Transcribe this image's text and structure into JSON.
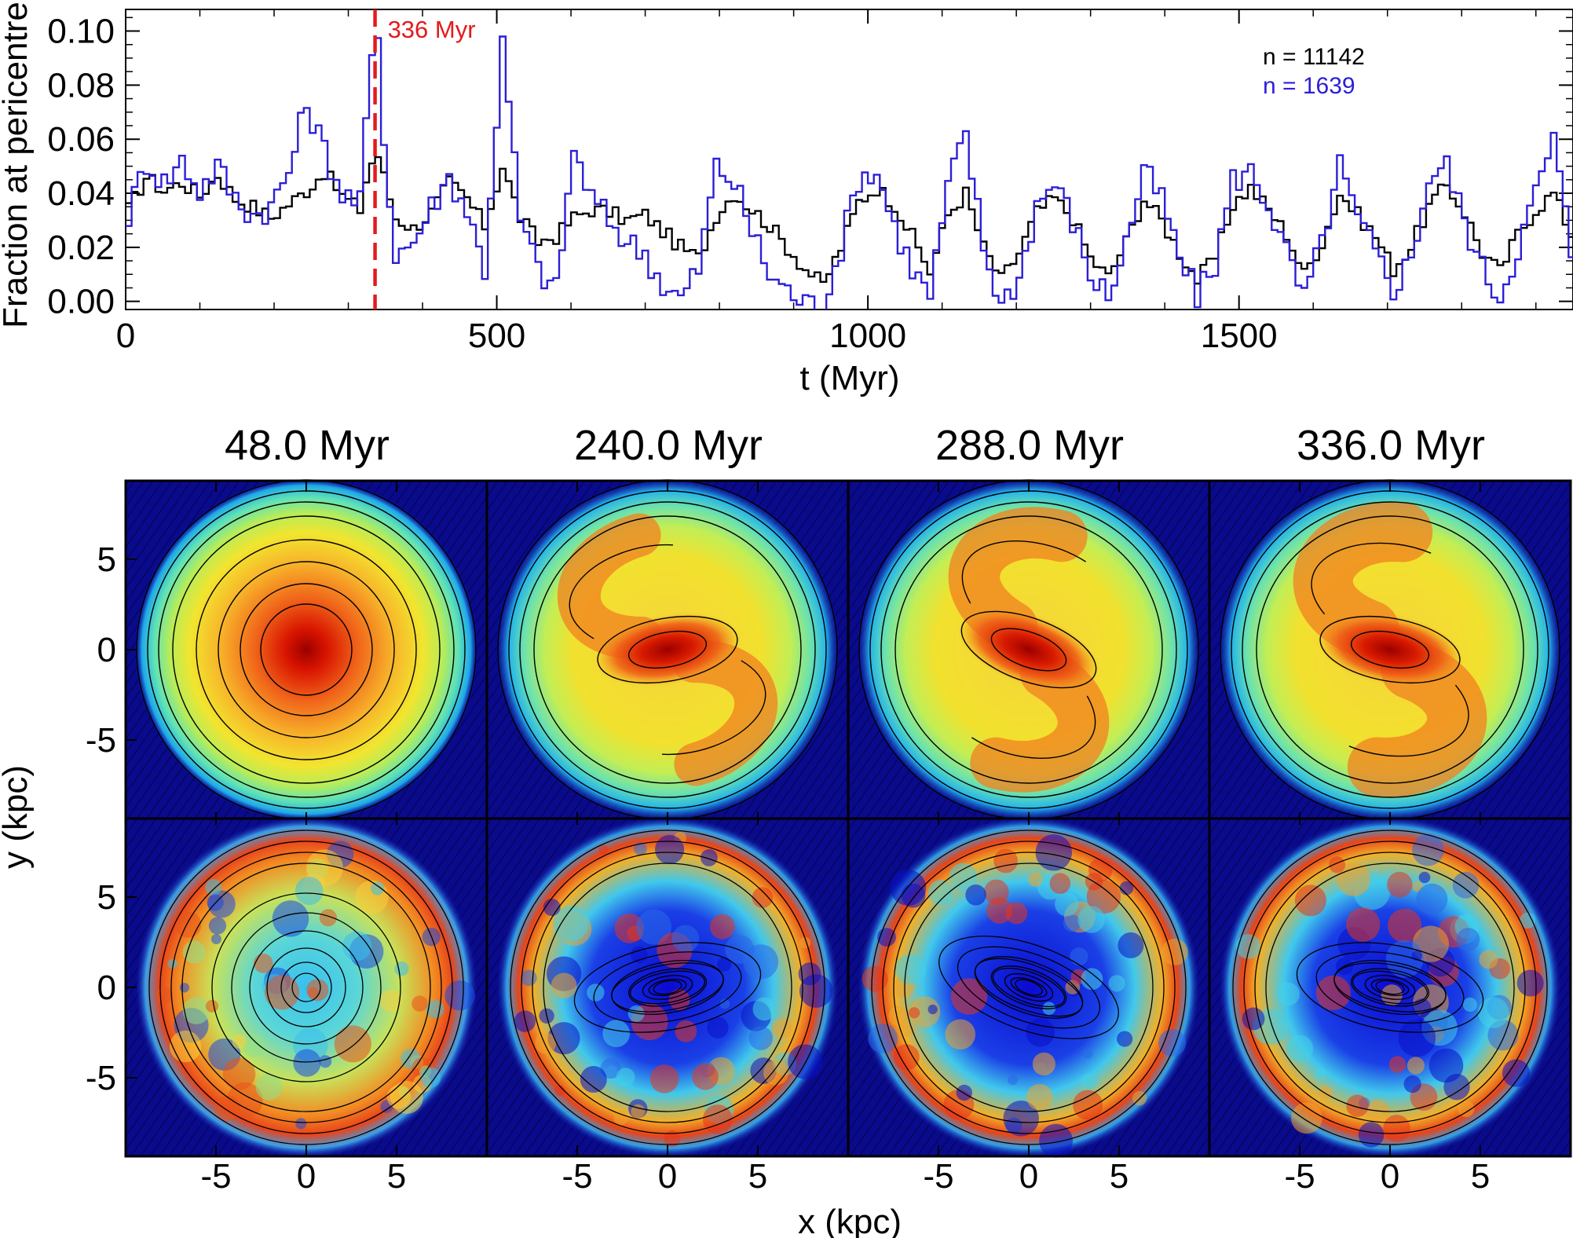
{
  "chart_data": [
    {
      "type": "line",
      "style": "step",
      "xlabel": "t (Myr)",
      "ylabel": "Fraction at pericentre",
      "xlim": [
        0,
        1950
      ],
      "ylim": [
        -0.003,
        0.108
      ],
      "xticks": [
        0,
        500,
        1000,
        1500
      ],
      "xtick_labels": [
        "0",
        "500",
        "1000",
        "1500"
      ],
      "yticks": [
        0.0,
        0.02,
        0.04,
        0.06,
        0.08,
        0.1
      ],
      "ytick_labels": [
        "0.00",
        "0.02",
        "0.04",
        "0.06",
        "0.08",
        "0.10"
      ],
      "legend_position": "top-right",
      "annotation": {
        "x": 336,
        "label": "336 Myr",
        "color": "#e41a1c",
        "style": "dashed"
      },
      "series": [
        {
          "name": "n = 11142",
          "color": "#000000",
          "x": [
            0,
            24,
            48,
            72,
            96,
            120,
            144,
            168,
            192,
            216,
            240,
            264,
            288,
            312,
            324,
            336,
            348,
            360,
            384,
            408,
            432,
            456,
            480,
            504,
            528,
            552,
            576,
            600,
            624,
            648,
            672,
            696,
            720,
            744,
            768,
            792,
            816,
            840,
            864,
            888,
            912,
            936,
            960,
            984,
            1008,
            1032,
            1056,
            1080,
            1104,
            1128,
            1152,
            1176,
            1200,
            1224,
            1248,
            1272,
            1296,
            1320,
            1344,
            1368,
            1392,
            1416,
            1440,
            1464,
            1488,
            1512,
            1536,
            1560,
            1584,
            1608,
            1632,
            1656,
            1680,
            1704,
            1728,
            1752,
            1776,
            1800,
            1824,
            1848,
            1872,
            1896,
            1920,
            1944
          ],
          "y": [
            0.034,
            0.046,
            0.041,
            0.044,
            0.039,
            0.047,
            0.038,
            0.035,
            0.031,
            0.036,
            0.041,
            0.048,
            0.039,
            0.034,
            0.05,
            0.054,
            0.042,
            0.031,
            0.027,
            0.033,
            0.044,
            0.038,
            0.028,
            0.05,
            0.031,
            0.022,
            0.024,
            0.031,
            0.034,
            0.033,
            0.03,
            0.032,
            0.026,
            0.02,
            0.016,
            0.032,
            0.04,
            0.034,
            0.028,
            0.02,
            0.012,
            0.006,
            0.02,
            0.037,
            0.042,
            0.036,
            0.024,
            0.011,
            0.032,
            0.04,
            0.02,
            0.008,
            0.018,
            0.033,
            0.038,
            0.031,
            0.016,
            0.009,
            0.022,
            0.038,
            0.03,
            0.018,
            0.008,
            0.016,
            0.036,
            0.042,
            0.034,
            0.025,
            0.01,
            0.022,
            0.04,
            0.032,
            0.024,
            0.012,
            0.02,
            0.035,
            0.043,
            0.033,
            0.018,
            0.011,
            0.025,
            0.034,
            0.04,
            0.025
          ]
        },
        {
          "name": "n = 1639",
          "color": "#2b1fd6",
          "x": [
            0,
            24,
            48,
            72,
            96,
            120,
            144,
            168,
            192,
            216,
            240,
            264,
            288,
            312,
            324,
            336,
            348,
            360,
            384,
            408,
            432,
            456,
            480,
            504,
            528,
            552,
            576,
            600,
            624,
            648,
            672,
            696,
            720,
            744,
            768,
            792,
            816,
            840,
            864,
            888,
            912,
            936,
            960,
            984,
            1008,
            1032,
            1056,
            1080,
            1104,
            1128,
            1152,
            1176,
            1200,
            1224,
            1248,
            1272,
            1296,
            1320,
            1344,
            1368,
            1392,
            1416,
            1440,
            1464,
            1488,
            1512,
            1536,
            1560,
            1584,
            1608,
            1632,
            1656,
            1680,
            1704,
            1728,
            1752,
            1776,
            1800,
            1824,
            1848,
            1872,
            1896,
            1920,
            1944
          ],
          "y": [
            0.032,
            0.052,
            0.044,
            0.052,
            0.041,
            0.05,
            0.038,
            0.032,
            0.035,
            0.048,
            0.073,
            0.056,
            0.04,
            0.036,
            0.082,
            0.098,
            0.045,
            0.018,
            0.022,
            0.035,
            0.046,
            0.034,
            0.012,
            0.095,
            0.03,
            0.012,
            0.004,
            0.056,
            0.038,
            0.03,
            0.022,
            0.018,
            0.006,
            0.001,
            0.012,
            0.05,
            0.044,
            0.026,
            0.01,
            0.004,
            -0.001,
            0.0,
            0.02,
            0.046,
            0.048,
            0.028,
            0.012,
            0.002,
            0.042,
            0.062,
            0.02,
            -0.001,
            0.009,
            0.036,
            0.044,
            0.03,
            0.01,
            0.002,
            0.022,
            0.048,
            0.038,
            0.016,
            0.002,
            0.014,
            0.045,
            0.048,
            0.036,
            0.018,
            0.001,
            0.022,
            0.05,
            0.03,
            0.018,
            0.005,
            0.016,
            0.046,
            0.05,
            0.03,
            0.012,
            0.002,
            0.02,
            0.04,
            0.06,
            0.018
          ]
        }
      ]
    },
    {
      "type": "heatmap",
      "rows": [
        "surface density",
        "pericentre density"
      ],
      "panel_titles": [
        "48.0 Myr",
        "240.0 Myr",
        "288.0 Myr",
        "336.0 Myr"
      ],
      "xlabel": "x (kpc)",
      "ylabel": "y (kpc)",
      "xlim": [
        -10,
        10
      ],
      "ylim": [
        -10,
        10
      ],
      "xtick_labels": [
        "-5",
        "0",
        "5"
      ],
      "ytick_labels": [
        "5",
        "0",
        "-5"
      ],
      "colormap": "jet",
      "contours": "black",
      "bar_strength": [
        0.0,
        0.5,
        0.65,
        0.8
      ],
      "bar_angle_deg": [
        0,
        -10,
        20,
        10
      ]
    }
  ]
}
